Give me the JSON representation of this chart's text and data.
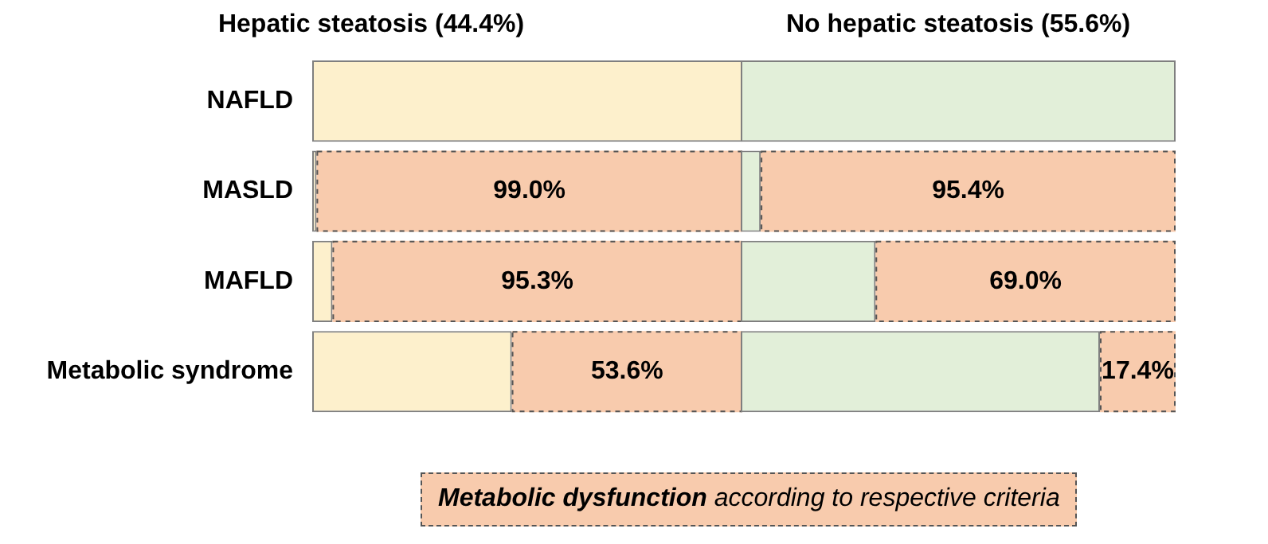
{
  "chart_data": [
    {
      "type": "bar",
      "orientation": "horizontal",
      "stacked": true,
      "title": "Hepatic steatosis (44.4%)",
      "categories": [
        "NAFLD",
        "MASLD",
        "MAFLD",
        "Metabolic syndrome"
      ],
      "xlim": [
        0,
        100
      ],
      "tick_labels": "y",
      "legend": "bottom",
      "series": [
        {
          "color": "#fdf0cc",
          "values": [
            100,
            1.0,
            4.7,
            46.4
          ]
        },
        {
          "name": "Metabolic dysfunction according to respective criteria",
          "color": "#f8cbad",
          "values": [
            0,
            99.0,
            95.3,
            53.6
          ],
          "value_labels": [
            null,
            "99.0%",
            "95.3%",
            "53.6%"
          ]
        }
      ]
    },
    {
      "type": "bar",
      "orientation": "horizontal",
      "stacked": true,
      "title": "No hepatic steatosis (55.6%)",
      "categories": [
        null,
        null,
        null,
        null
      ],
      "xlim": [
        0,
        100
      ],
      "tick_labels": false,
      "series": [
        {
          "color": "#e2efd9",
          "values": [
            100,
            4.6,
            31.0,
            82.6
          ]
        },
        {
          "color": "#f8cbad",
          "values": [
            0,
            95.4,
            69.0,
            17.4
          ],
          "value_labels": [
            null,
            "95.4%",
            "69.0%",
            "17.4%"
          ]
        }
      ]
    }
  ]
}
